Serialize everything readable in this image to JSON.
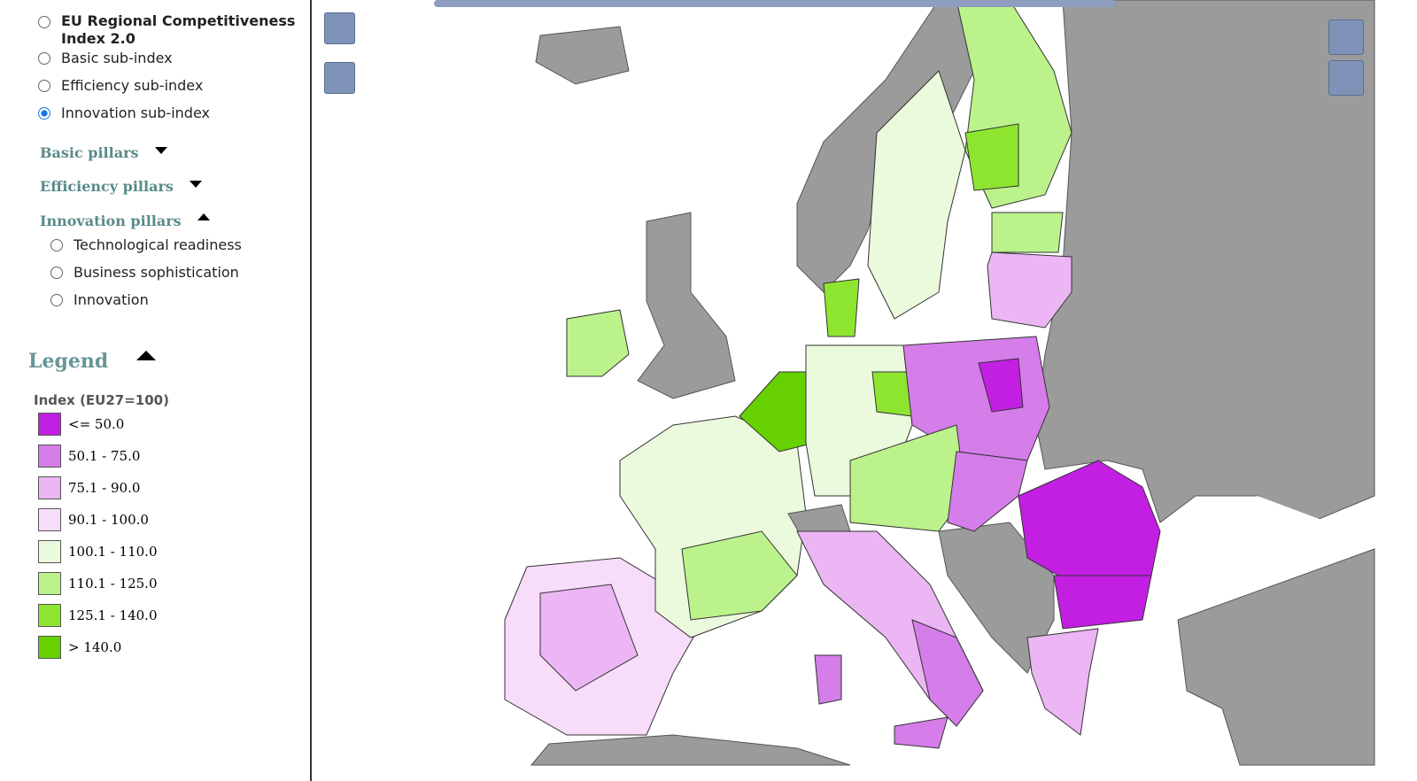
{
  "indices": [
    {
      "label": "EU Regional Competitiveness Index 2.0",
      "checked": false
    },
    {
      "label": "Basic sub-index",
      "checked": false
    },
    {
      "label": "Efficiency sub-index",
      "checked": false
    },
    {
      "label": "Innovation sub-index",
      "checked": true
    }
  ],
  "sections": [
    {
      "label": "Basic pillars",
      "expanded": false
    },
    {
      "label": "Efficiency pillars",
      "expanded": false
    },
    {
      "label": "Innovation pillars",
      "expanded": true,
      "options": [
        "Technological readiness",
        "Business sophistication",
        "Innovation"
      ]
    }
  ],
  "legend": {
    "title": "Legend",
    "subtitle": "Index (EU27=100)",
    "items": [
      {
        "label": "<= 50.0",
        "color": "#c21fe2"
      },
      {
        "label": "50.1 - 75.0",
        "color": "#d57de9"
      },
      {
        "label": "75.1 - 90.0",
        "color": "#ebb6f3"
      },
      {
        "label": "90.1 - 100.0",
        "color": "#f8ddfa"
      },
      {
        "label": "100.1 - 110.0",
        "color": "#ebf9dd"
      },
      {
        "label": "110.1 - 125.0",
        "color": "#bbf28b"
      },
      {
        "label": "125.1 - 140.0",
        "color": "#8ee52f"
      },
      {
        "label": "> 140.0",
        "color": "#66d000"
      }
    ]
  }
}
